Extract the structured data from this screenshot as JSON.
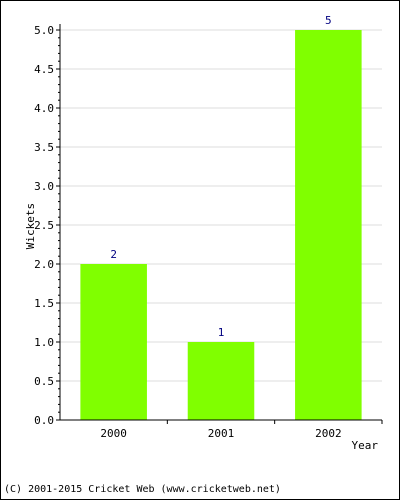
{
  "chart_data": {
    "type": "bar",
    "categories": [
      "2000",
      "2001",
      "2002"
    ],
    "values": [
      2,
      1,
      5
    ],
    "data_labels": [
      "2",
      "1",
      "5"
    ],
    "title": "",
    "xlabel": "Year",
    "ylabel": "Wickets",
    "ylim": [
      0,
      5
    ],
    "yticks": [
      "0.0",
      "0.5",
      "1.0",
      "1.5",
      "2.0",
      "2.5",
      "3.0",
      "3.5",
      "4.0",
      "4.5",
      "5.0"
    ],
    "grid": true,
    "legend": "none",
    "bar_color": "#80ff00",
    "label_color": "#000080"
  },
  "footer": {
    "copyright": "(C) 2001-2015 Cricket Web (www.cricketweb.net)"
  }
}
